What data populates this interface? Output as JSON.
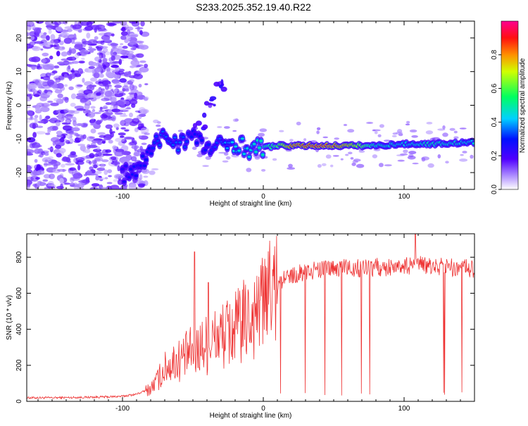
{
  "title": "S233.2025.352.19.40.R22",
  "chart_data": [
    {
      "type": "heatmap",
      "xlabel": "Height of straight line (km)",
      "ylabel": "Frequency (Hz)",
      "xlim": [
        -168,
        150
      ],
      "ylim": [
        -25,
        25
      ],
      "xticks": [
        -100,
        0,
        100
      ],
      "yticks": [
        -20,
        -10,
        0,
        10,
        20
      ],
      "colorbar": {
        "label": "Normalized spectral amplitude",
        "range": [
          0,
          1
        ],
        "ticks": [
          "0.0",
          "0.2",
          "0.4",
          "0.6",
          "0.8"
        ],
        "tick_values": [
          0,
          0.2,
          0.4,
          0.6,
          0.8
        ]
      },
      "signal_track": [
        {
          "x": -100,
          "y": -20.5,
          "a": 0.25
        },
        {
          "x": -90,
          "y": -19.5,
          "a": 0.3
        },
        {
          "x": -80,
          "y": -14,
          "a": 0.3
        },
        {
          "x": -72,
          "y": -9,
          "a": 0.35
        },
        {
          "x": -60,
          "y": -11,
          "a": 0.35
        },
        {
          "x": -50,
          "y": -9,
          "a": 0.3
        },
        {
          "x": -40,
          "y": -13,
          "a": 0.3
        },
        {
          "x": -30,
          "y": -12,
          "a": 0.35
        },
        {
          "x": -20,
          "y": -11,
          "a": 0.45
        },
        {
          "x": -10,
          "y": -13,
          "a": 0.45
        },
        {
          "x": 0,
          "y": -12.5,
          "a": 0.5
        },
        {
          "x": 10,
          "y": -12,
          "a": 0.6
        },
        {
          "x": 20,
          "y": -12,
          "a": 0.85
        },
        {
          "x": 40,
          "y": -12,
          "a": 0.9
        },
        {
          "x": 60,
          "y": -12,
          "a": 0.8
        },
        {
          "x": 80,
          "y": -12,
          "a": 0.5
        },
        {
          "x": 100,
          "y": -11.5,
          "a": 0.45
        },
        {
          "x": 120,
          "y": -11.5,
          "a": 0.5
        },
        {
          "x": 150,
          "y": -11,
          "a": 0.45
        }
      ],
      "side_branch": [
        {
          "x": -45,
          "y": -5,
          "a": 0.2
        },
        {
          "x": -38,
          "y": 0,
          "a": 0.2
        },
        {
          "x": -30,
          "y": 6,
          "a": 0.25
        }
      ]
    },
    {
      "type": "line",
      "xlabel": "Height of straight line (km)",
      "ylabel": "SNR (10 * v/v)",
      "xlim": [
        -168,
        150
      ],
      "ylim": [
        0,
        930
      ],
      "xticks": [
        -100,
        0,
        100
      ],
      "yticks": [
        0,
        200,
        400,
        600,
        800
      ],
      "color": "#ee3333",
      "series": [
        {
          "name": "SNR",
          "x": [
            -168,
            -150,
            -130,
            -110,
            -100,
            -90,
            -80,
            -75,
            -70,
            -65,
            -60,
            -55,
            -50,
            -45,
            -40,
            -35,
            -30,
            -25,
            -20,
            -15,
            -10,
            -5,
            0,
            5,
            10,
            15,
            20,
            25,
            30,
            40,
            50,
            60,
            70,
            80,
            90,
            100,
            110,
            120,
            130,
            140,
            150
          ],
          "values": [
            20,
            20,
            22,
            25,
            28,
            40,
            70,
            120,
            180,
            210,
            230,
            250,
            280,
            300,
            320,
            340,
            360,
            380,
            400,
            430,
            460,
            500,
            540,
            590,
            640,
            680,
            700,
            710,
            720,
            730,
            735,
            740,
            740,
            745,
            745,
            750,
            755,
            750,
            750,
            740,
            735
          ],
          "spikes": [
            {
              "x": -49,
              "y": 830
            },
            {
              "x": -39,
              "y": 660
            },
            {
              "x": 108,
              "y": 930
            }
          ]
        }
      ]
    }
  ]
}
